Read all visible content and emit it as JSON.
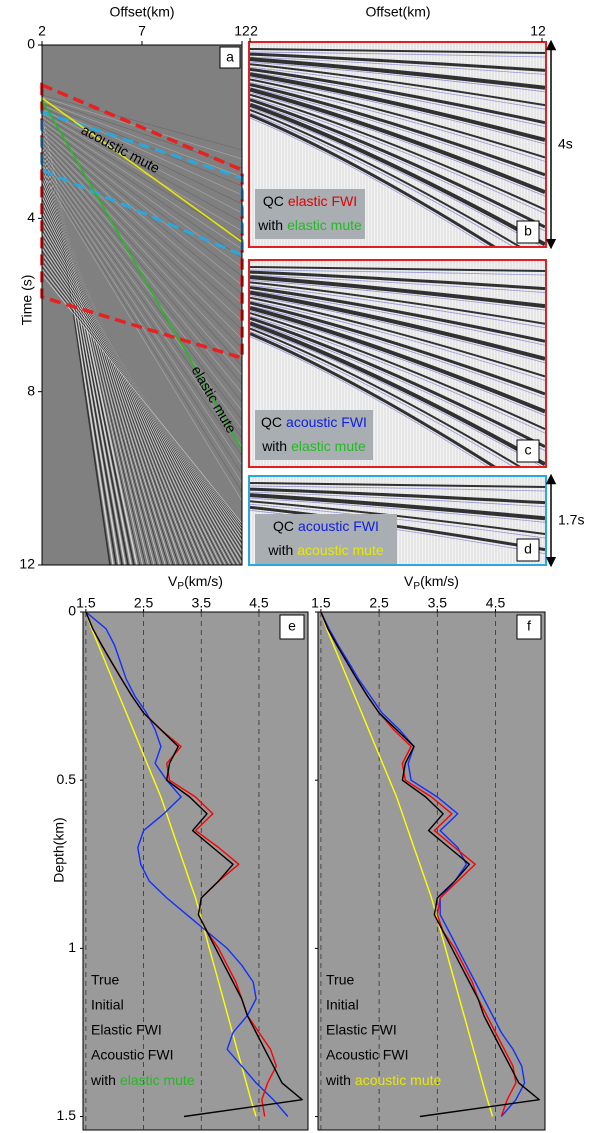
{
  "seismic": {
    "panel_a": {
      "x_label": "Offset(km)",
      "y_label": "Time (s)",
      "xlim": [
        2,
        12
      ],
      "xticks": [
        2,
        7,
        12
      ],
      "ylim": [
        0,
        12
      ],
      "yticks": [
        0,
        4,
        8,
        12
      ],
      "tag": "a",
      "annotations": [
        {
          "text": "acoustic mute",
          "color": "#e8e800"
        },
        {
          "text": "elastic mute",
          "color": "#22bb22"
        }
      ]
    },
    "right_x_label": "Offset(km)",
    "right_xlim": [
      2,
      12
    ],
    "right_xticks": [
      2,
      12
    ],
    "panels": [
      {
        "tag": "b",
        "border": "#e02020",
        "span": "4s",
        "lines": [
          [
            {
              "text": "QC",
              "color": "#000000"
            },
            {
              "text": "elastic FWI",
              "color": "#e00000"
            }
          ],
          [
            {
              "text": "with",
              "color": "#000000"
            },
            {
              "text": "elastic mute",
              "color": "#22bb22"
            }
          ]
        ]
      },
      {
        "tag": "c",
        "border": "#e02020",
        "lines": [
          [
            {
              "text": "QC",
              "color": "#000000"
            },
            {
              "text": "acoustic FWI",
              "color": "#1020e0"
            }
          ],
          [
            {
              "text": "with",
              "color": "#000000"
            },
            {
              "text": "elastic mute",
              "color": "#22bb22"
            }
          ]
        ]
      },
      {
        "tag": "d",
        "border": "#29a8e0",
        "span": "1.7s",
        "lines": [
          [
            {
              "text": "QC",
              "color": "#000000"
            },
            {
              "text": "acoustic FWI",
              "color": "#1020e0"
            }
          ],
          [
            {
              "text": "with",
              "color": "#000000"
            },
            {
              "text": "acoustic mute",
              "color": "#e8e800"
            }
          ]
        ]
      }
    ]
  },
  "chart_data": [
    {
      "type": "line",
      "orientation": "vertical",
      "tag": "e",
      "title": "V",
      "title_sub": "P",
      "title_unit": "(km/s)",
      "y_label": "Depth(km)",
      "x": [
        0,
        0.05,
        0.1,
        0.15,
        0.2,
        0.25,
        0.3,
        0.35,
        0.4,
        0.45,
        0.5,
        0.55,
        0.6,
        0.65,
        0.7,
        0.75,
        0.8,
        0.85,
        0.9,
        0.95,
        1,
        1.05,
        1.1,
        1.15,
        1.2,
        1.25,
        1.3,
        1.35,
        1.4,
        1.45,
        1.5
      ],
      "xlim": [
        0,
        1.54
      ],
      "xticks": [
        0,
        0.5,
        1,
        1.5
      ],
      "ylim": [
        1.45,
        5.35
      ],
      "yticks": [
        1.5,
        2.5,
        3.5,
        4.5
      ],
      "grid": true,
      "series": [
        {
          "name": "True",
          "color": "#000000",
          "values": [
            1.5,
            1.62,
            1.78,
            1.95,
            2.12,
            2.3,
            2.5,
            2.8,
            3.1,
            2.95,
            2.9,
            3.3,
            3.6,
            3.35,
            3.7,
            4.05,
            3.8,
            3.5,
            3.45,
            3.6,
            3.75,
            3.9,
            4.05,
            4.2,
            4.3,
            4.45,
            4.6,
            4.75,
            4.9,
            5.25,
            3.2
          ]
        },
        {
          "name": "Initial",
          "color": "#ffff00",
          "values": [
            1.5,
            1.6,
            1.72,
            1.84,
            1.96,
            2.08,
            2.2,
            2.32,
            2.44,
            2.56,
            2.68,
            2.8,
            2.9,
            3.0,
            3.1,
            3.2,
            3.3,
            3.4,
            3.48,
            3.56,
            3.64,
            3.72,
            3.8,
            3.88,
            3.96,
            4.04,
            4.12,
            4.2,
            4.28,
            4.36,
            4.45
          ]
        },
        {
          "name": "Elastic FWI",
          "color": "#ff0000",
          "values": [
            1.5,
            1.62,
            1.78,
            1.95,
            2.12,
            2.3,
            2.5,
            2.8,
            3.15,
            2.9,
            2.95,
            3.4,
            3.7,
            3.4,
            3.8,
            4.15,
            3.8,
            3.5,
            3.45,
            3.6,
            3.8,
            3.95,
            4.1,
            4.2,
            4.3,
            4.5,
            4.7,
            4.8,
            4.65,
            4.55,
            4.6
          ]
        },
        {
          "name": "Acoustic FWI",
          "color": "#1030ff",
          "values": [
            1.5,
            1.85,
            2.0,
            2.1,
            2.2,
            2.35,
            2.55,
            2.7,
            2.8,
            2.7,
            2.9,
            3.15,
            2.85,
            2.5,
            2.4,
            2.45,
            2.6,
            2.9,
            3.25,
            3.6,
            3.95,
            4.2,
            4.4,
            4.45,
            4.3,
            4.05,
            3.95,
            4.2,
            4.45,
            4.75,
            5.0
          ]
        }
      ],
      "note": [
        {
          "text": "with",
          "color": "#000000"
        },
        {
          "text": "elastic mute",
          "color": "#22bb22"
        }
      ]
    },
    {
      "type": "line",
      "orientation": "vertical",
      "tag": "f",
      "title": "V",
      "title_sub": "P",
      "title_unit": "(km/s)",
      "x": [
        0,
        0.05,
        0.1,
        0.15,
        0.2,
        0.25,
        0.3,
        0.35,
        0.4,
        0.45,
        0.5,
        0.55,
        0.6,
        0.65,
        0.7,
        0.75,
        0.8,
        0.85,
        0.9,
        0.95,
        1,
        1.05,
        1.1,
        1.15,
        1.2,
        1.25,
        1.3,
        1.35,
        1.4,
        1.45,
        1.5
      ],
      "xlim": [
        0,
        1.54
      ],
      "xticks": [
        0,
        0.5,
        1,
        1.5
      ],
      "ylim": [
        1.45,
        5.35
      ],
      "yticks": [
        1.5,
        2.5,
        3.5,
        4.5
      ],
      "grid": true,
      "series": [
        {
          "name": "True",
          "color": "#000000",
          "values": [
            1.5,
            1.62,
            1.78,
            1.95,
            2.12,
            2.3,
            2.5,
            2.8,
            3.1,
            2.95,
            2.9,
            3.3,
            3.6,
            3.35,
            3.7,
            4.05,
            3.8,
            3.5,
            3.45,
            3.6,
            3.75,
            3.9,
            4.05,
            4.2,
            4.3,
            4.45,
            4.6,
            4.75,
            4.9,
            5.25,
            3.2
          ]
        },
        {
          "name": "Initial",
          "color": "#ffff00",
          "values": [
            1.5,
            1.6,
            1.72,
            1.84,
            1.96,
            2.08,
            2.2,
            2.32,
            2.44,
            2.56,
            2.68,
            2.8,
            2.9,
            3.0,
            3.1,
            3.2,
            3.3,
            3.4,
            3.48,
            3.56,
            3.64,
            3.72,
            3.8,
            3.88,
            3.96,
            4.04,
            4.12,
            4.2,
            4.28,
            4.36,
            4.45
          ]
        },
        {
          "name": "Elastic FWI",
          "color": "#ff0000",
          "values": [
            1.5,
            1.62,
            1.78,
            1.95,
            2.12,
            2.3,
            2.5,
            2.75,
            3.05,
            2.9,
            2.95,
            3.4,
            3.75,
            3.45,
            3.8,
            4.15,
            3.85,
            3.55,
            3.5,
            3.6,
            3.8,
            3.95,
            4.1,
            4.2,
            4.35,
            4.5,
            4.65,
            4.8,
            4.85,
            4.7,
            4.6
          ]
        },
        {
          "name": "Acoustic FWI",
          "color": "#1030ff",
          "values": [
            1.5,
            1.64,
            1.8,
            1.98,
            2.15,
            2.35,
            2.55,
            2.85,
            3.1,
            3.0,
            3.05,
            3.5,
            3.85,
            3.55,
            3.85,
            4.0,
            3.8,
            3.55,
            3.55,
            3.7,
            3.85,
            4.0,
            4.15,
            4.3,
            4.45,
            4.6,
            4.8,
            4.95,
            5.0,
            4.85,
            4.6
          ]
        }
      ],
      "note": [
        {
          "text": "with",
          "color": "#000000"
        },
        {
          "text": "acoustic mute",
          "color": "#e8e800"
        }
      ]
    }
  ]
}
